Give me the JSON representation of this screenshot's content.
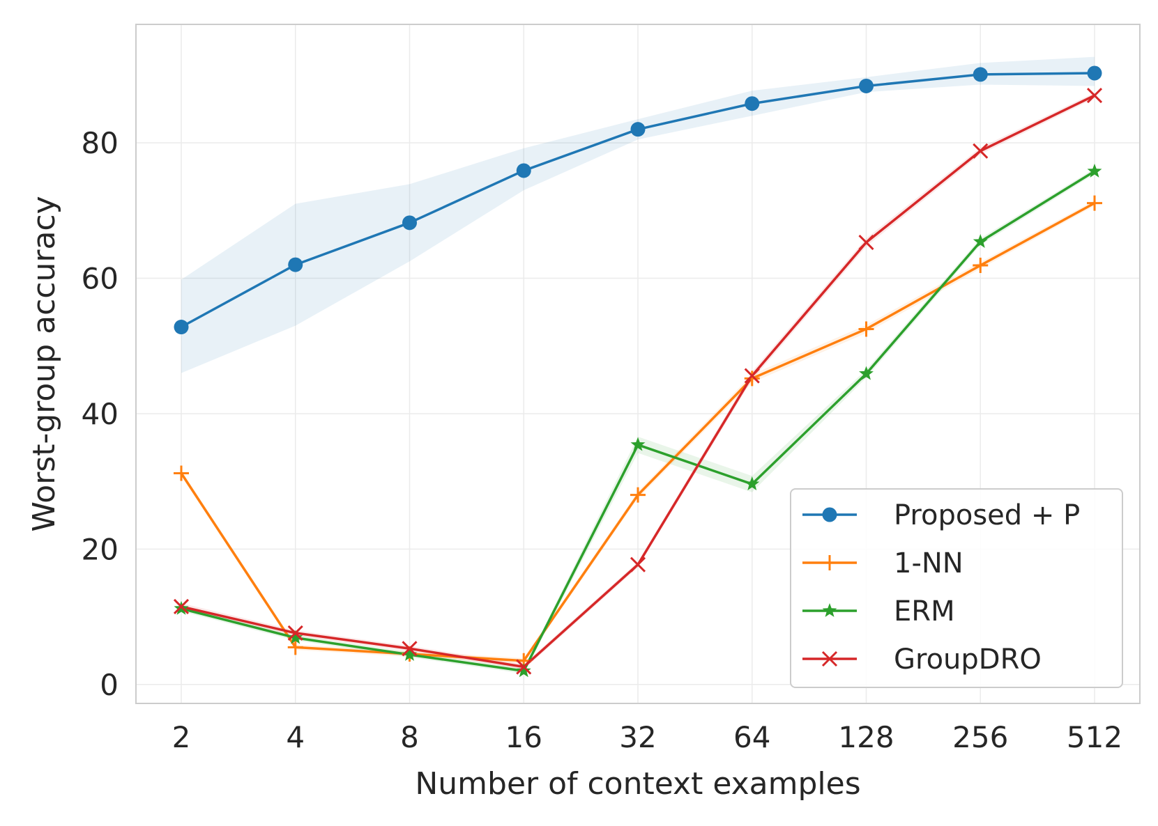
{
  "chart_data": {
    "type": "line",
    "title": "",
    "xlabel": "Number of context examples",
    "ylabel": "Worst-group accuracy",
    "x": [
      2,
      4,
      8,
      16,
      32,
      64,
      128,
      256,
      512
    ],
    "x_scale": "log2",
    "ylim": [
      -2.8,
      97.5
    ],
    "yticks": [
      0,
      20,
      40,
      60,
      80
    ],
    "grid": true,
    "legend_position": "lower-right",
    "series": [
      {
        "name": "Proposed + P",
        "color": "#1f77b4",
        "marker": "circle",
        "values": [
          52.8,
          62.0,
          68.2,
          75.9,
          82.0,
          85.8,
          88.4,
          90.1,
          90.3
        ],
        "band_low": [
          46.0,
          53.0,
          62.5,
          73.0,
          80.5,
          84.0,
          87.5,
          88.6,
          88.4
        ],
        "band_high": [
          59.8,
          71.0,
          73.9,
          79.2,
          83.5,
          87.7,
          89.7,
          91.8,
          92.7
        ]
      },
      {
        "name": "1-NN",
        "color": "#ff7f0e",
        "marker": "plus",
        "values": [
          31.2,
          5.5,
          4.5,
          3.5,
          28.0,
          45.2,
          52.5,
          61.9,
          71.1
        ],
        "band_low": [
          30.8,
          5.1,
          4.1,
          3.1,
          27.5,
          44.6,
          51.9,
          61.4,
          70.7
        ],
        "band_high": [
          31.6,
          5.9,
          4.9,
          3.9,
          28.5,
          45.8,
          53.1,
          62.4,
          71.5
        ]
      },
      {
        "name": "ERM",
        "color": "#2ca02c",
        "marker": "star",
        "values": [
          11.2,
          6.9,
          4.4,
          2.0,
          35.4,
          29.6,
          45.9,
          65.4,
          75.8
        ],
        "band_low": [
          10.8,
          6.5,
          4.0,
          1.6,
          34.2,
          28.4,
          45.3,
          64.9,
          75.4
        ],
        "band_high": [
          11.6,
          7.3,
          4.8,
          2.4,
          36.6,
          30.8,
          46.5,
          65.9,
          76.2
        ]
      },
      {
        "name": "GroupDRO",
        "color": "#d62728",
        "marker": "x",
        "values": [
          11.5,
          7.6,
          5.3,
          2.6,
          17.7,
          45.6,
          65.3,
          78.8,
          87.0
        ],
        "band_low": [
          11.0,
          7.2,
          4.9,
          2.2,
          17.3,
          45.0,
          64.7,
          78.3,
          86.6
        ],
        "band_high": [
          12.0,
          8.0,
          5.7,
          3.0,
          18.1,
          46.2,
          65.9,
          79.3,
          87.4
        ]
      }
    ]
  }
}
